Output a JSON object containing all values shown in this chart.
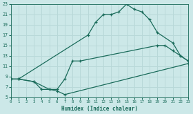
{
  "xlabel": "Humidex (Indice chaleur)",
  "ylabel": "",
  "bg_color": "#cce8e8",
  "grid_color": "#b8d8d8",
  "line_color": "#1a6b5a",
  "xmin": 0,
  "xmax": 23,
  "ymin": 5,
  "ymax": 23,
  "line1_x": [
    0,
    1,
    10,
    11,
    12,
    13,
    14,
    15,
    16,
    17,
    18,
    19,
    21,
    22,
    23
  ],
  "line1_y": [
    8.5,
    8.5,
    17,
    19.5,
    21,
    21,
    21.5,
    23,
    22,
    21.5,
    20,
    17.5,
    15.5,
    13,
    12
  ],
  "line2_x": [
    0,
    1,
    3,
    5,
    6,
    7,
    8,
    9,
    19,
    20,
    21,
    22,
    23
  ],
  "line2_y": [
    8.5,
    8.5,
    8,
    6.5,
    6.5,
    8.5,
    12,
    12,
    15,
    15,
    14,
    13,
    12
  ],
  "line3_x": [
    0,
    1,
    3,
    4,
    5,
    6,
    7,
    23
  ],
  "line3_y": [
    8.5,
    8.5,
    8,
    6.5,
    6.5,
    6.2,
    5.5,
    11.5
  ],
  "yticks": [
    5,
    7,
    9,
    11,
    13,
    15,
    17,
    19,
    21,
    23
  ],
  "xticks": [
    0,
    1,
    2,
    3,
    4,
    5,
    6,
    7,
    8,
    9,
    10,
    11,
    12,
    13,
    14,
    15,
    16,
    17,
    18,
    19,
    20,
    21,
    22,
    23
  ]
}
